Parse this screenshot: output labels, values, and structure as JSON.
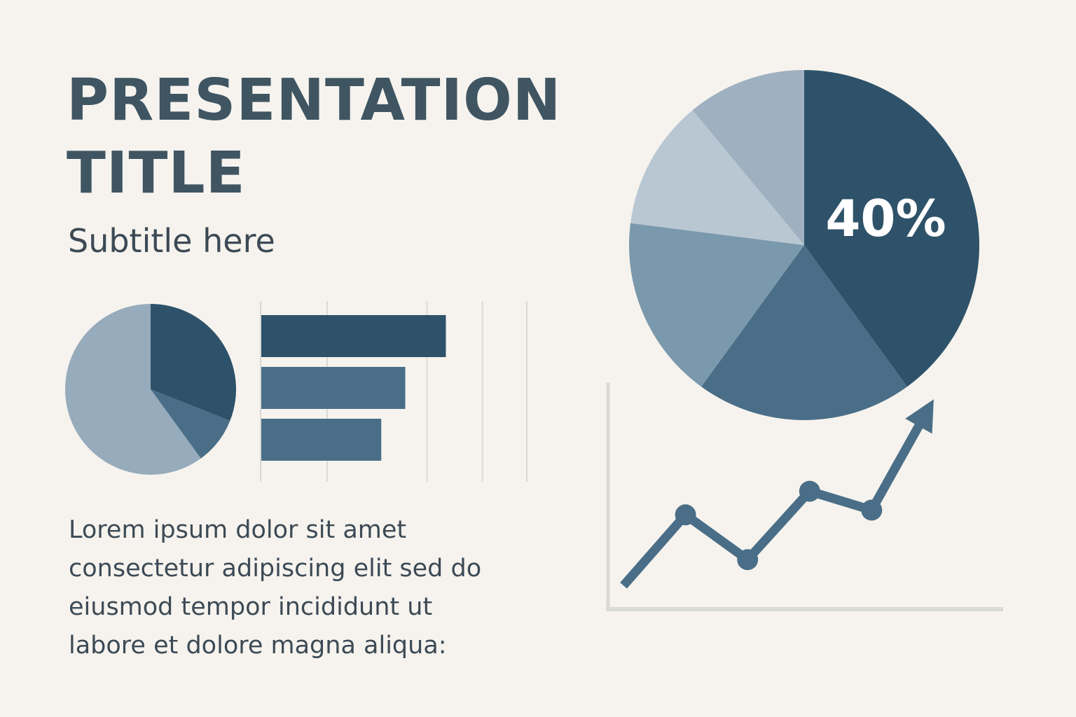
{
  "slide": {
    "title_lines": [
      "PRESENTATION",
      "TITLE"
    ],
    "subtitle": "Subtitle here",
    "body_lines": [
      "Lorem ipsum dolor sit amet",
      "consectetur adipiscing elit sed do",
      "eiusmod tempor incididunt ut",
      "labore et dolore magna aliqua:"
    ]
  },
  "colors": {
    "background": "#f6f3ee",
    "dark": "#2e5269",
    "mid": "#4a6e87",
    "mid_light": "#7b99ac",
    "light": "#9fb1c0",
    "lighter": "#b9c7d3",
    "text": "#3c4a55",
    "grid": "#d9d9d6"
  },
  "chart_data": [
    {
      "type": "pie",
      "values": [
        31,
        9,
        60
      ],
      "colors": [
        "#2e5269",
        "#4a6e87",
        "#96abbb"
      ]
    },
    {
      "type": "bar",
      "orientation": "horizontal",
      "values": [
        100,
        78,
        65
      ],
      "xlim": [
        0,
        120
      ],
      "colors": [
        "#2e5269",
        "#4a6e87",
        "#4a6e87"
      ],
      "grid": true
    },
    {
      "type": "pie",
      "values": [
        40,
        20,
        17,
        12,
        11
      ],
      "colors": [
        "#2e5269",
        "#4a6e87",
        "#7b99ac",
        "#b9c7d3",
        "#9fb1c0"
      ],
      "annotations": [
        {
          "slice": 0,
          "text": "40%"
        }
      ]
    },
    {
      "type": "line",
      "x": [
        0,
        1,
        2,
        3,
        4,
        5
      ],
      "values": [
        1.0,
        4.0,
        2.1,
        5.0,
        4.2,
        8.9
      ],
      "markers": [
        1,
        2,
        3,
        4
      ],
      "arrow_end": true,
      "xlim": [
        0,
        5.9
      ],
      "ylim": [
        0,
        9.5
      ]
    }
  ]
}
